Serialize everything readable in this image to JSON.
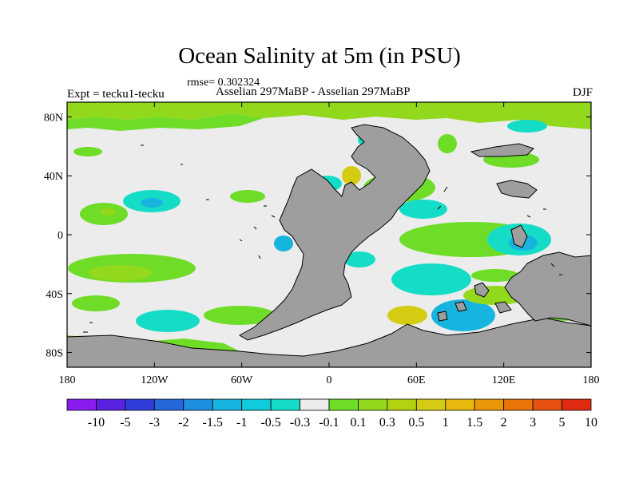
{
  "title": "Ocean Salinity at 5m (in PSU)",
  "rmse": "rmse= 0.302324",
  "expt": "Expt = tecku1-tecku",
  "period": "Asselian 297MaBP - Asselian 297MaBP",
  "season": "DJF",
  "x_ticks": [
    "180",
    "120W",
    "60W",
    "0",
    "60E",
    "120E",
    "180"
  ],
  "y_ticks": [
    "80N",
    "40N",
    "0",
    "40S",
    "80S"
  ],
  "colorbar": {
    "colors": [
      "#8a1cf0",
      "#5a22e0",
      "#2f3ddb",
      "#2468dc",
      "#1f8fe0",
      "#18b4e0",
      "#10cbdc",
      "#14dcc6",
      "#ececec",
      "#6fdc28",
      "#92d81c",
      "#b2d410",
      "#d4cc12",
      "#e8b80c",
      "#ea9606",
      "#ea7408",
      "#e85210",
      "#e02a12"
    ],
    "labels": [
      "-10",
      "-5",
      "-3",
      "-2",
      "-1.5",
      "-1",
      "-0.5",
      "-0.3",
      "-0.1",
      "0.1",
      "0.3",
      "0.5",
      "1",
      "1.5",
      "2",
      "3",
      "5",
      "10"
    ]
  },
  "colors": {
    "land": "#9e9e9e",
    "neutral": "#ececec",
    "light_green": "#6fdc28",
    "yellow_green": "#92d81c",
    "cyan": "#14dcc6",
    "blue": "#18b4e0",
    "yellow": "#d4cc12"
  }
}
